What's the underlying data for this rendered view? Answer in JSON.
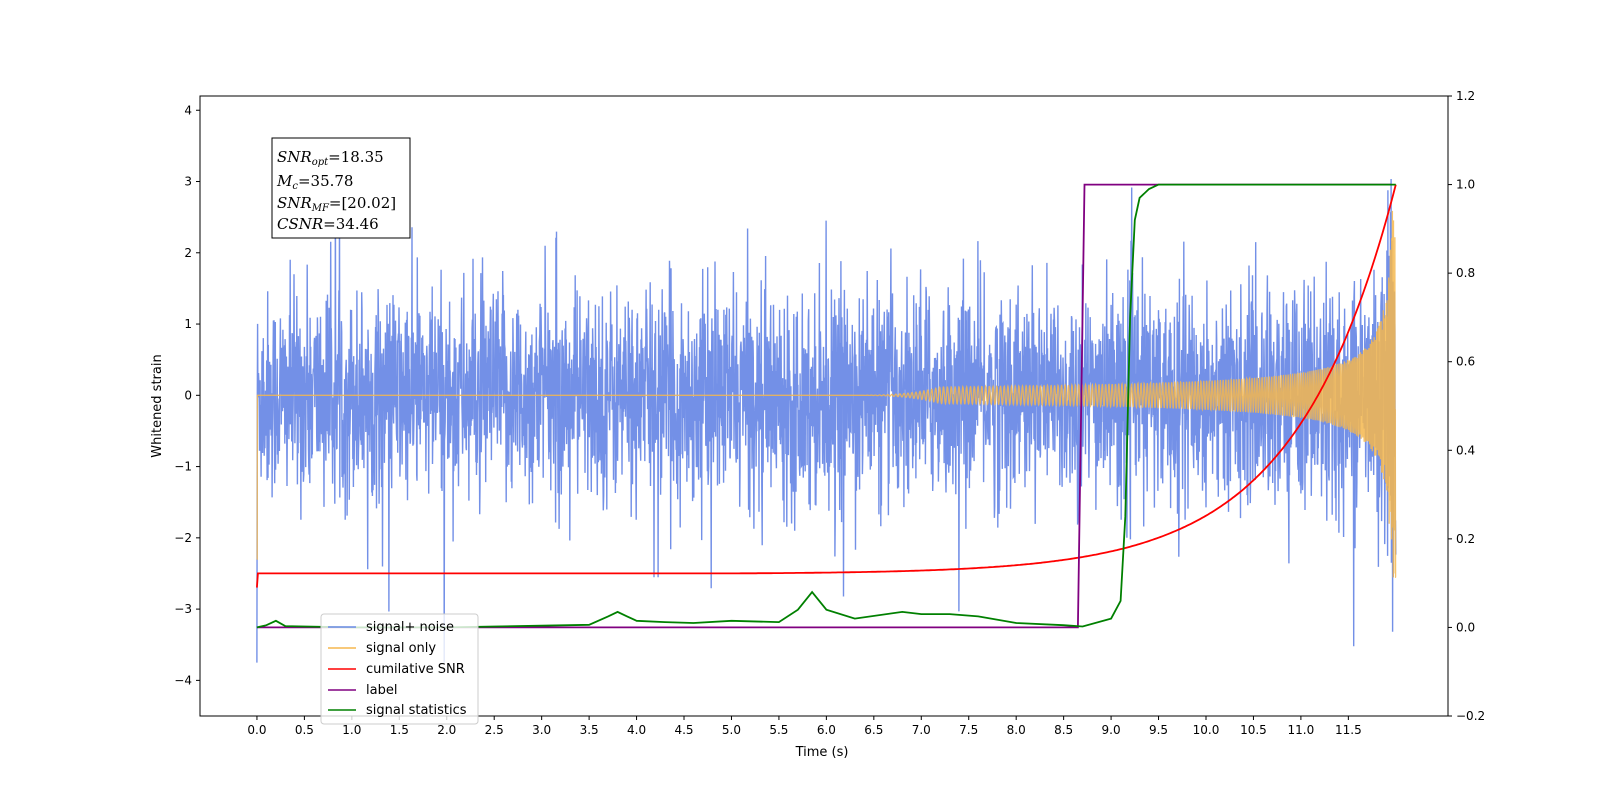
{
  "chart_data": {
    "type": "line",
    "xlabel": "Time (s)",
    "ylabel": "Whitened strain",
    "xlim": [
      -0.6,
      12.55
    ],
    "ylim_left": [
      -4.5,
      4.2
    ],
    "ylim_right": [
      -0.2,
      1.2
    ],
    "x_ticks": [
      "0.0",
      "0.5",
      "1.0",
      "1.5",
      "2.0",
      "2.5",
      "3.0",
      "3.5",
      "4.0",
      "4.5",
      "5.0",
      "5.5",
      "6.0",
      "6.5",
      "7.0",
      "7.5",
      "8.0",
      "8.5",
      "9.0",
      "9.5",
      "10.0",
      "10.5",
      "11.0",
      "11.5"
    ],
    "y_left_ticks": [
      "−4",
      "−3",
      "−2",
      "−1",
      "0",
      "1",
      "2",
      "3",
      "4"
    ],
    "y_right_ticks": [
      "−0.2",
      "0.0",
      "0.2",
      "0.4",
      "0.6",
      "0.8",
      "1.0",
      "1.2"
    ],
    "legend_position": "bottom-left",
    "legend": [
      "signal+ noise",
      "signal only",
      "cumilative SNR",
      "label",
      "signal statistics"
    ],
    "colors": {
      "signal_noise": "#6b8ae6",
      "signal_only": "#f5b74e",
      "cumulative_snr": "#ff0000",
      "label": "#800080",
      "signal_statistics": "#008000"
    },
    "annotation": {
      "snr_opt_value": "=18.35",
      "mc_value": "=35.78",
      "snr_mf_value": "=[20.02]",
      "csnr_value": "=34.46"
    },
    "series": [
      {
        "name": "cumilative SNR",
        "axis": "right",
        "x": [
          0.0,
          0.01,
          8.0,
          8.5,
          9.0,
          9.5,
          10.0,
          10.5,
          11.0,
          11.5,
          11.8,
          12.0
        ],
        "values": [
          0.09,
          0.122,
          0.124,
          0.14,
          0.18,
          0.222,
          0.27,
          0.33,
          0.41,
          0.56,
          0.73,
          1.0
        ]
      },
      {
        "name": "label",
        "axis": "right",
        "x": [
          0.0,
          8.65,
          8.72,
          11.95
        ],
        "values": [
          0.0,
          0.0,
          1.0,
          1.0
        ]
      },
      {
        "name": "signal statistics",
        "axis": "right",
        "x": [
          0.0,
          0.1,
          0.2,
          0.3,
          1.0,
          2.0,
          2.5,
          3.0,
          3.5,
          3.7,
          3.8,
          3.9,
          4.0,
          4.3,
          4.6,
          5.0,
          5.5,
          5.7,
          5.85,
          6.0,
          6.3,
          6.8,
          7.0,
          7.3,
          7.6,
          8.0,
          8.5,
          8.7,
          9.0,
          9.1,
          9.15,
          9.2,
          9.25,
          9.3,
          9.4,
          9.5,
          12.0
        ],
        "values": [
          0.0,
          0.005,
          0.015,
          0.003,
          0.0,
          0.0,
          0.002,
          0.004,
          0.006,
          0.025,
          0.035,
          0.025,
          0.015,
          0.012,
          0.01,
          0.015,
          0.012,
          0.04,
          0.08,
          0.04,
          0.02,
          0.035,
          0.03,
          0.03,
          0.025,
          0.01,
          0.005,
          0.002,
          0.02,
          0.06,
          0.25,
          0.7,
          0.92,
          0.97,
          0.99,
          1.0,
          1.0
        ]
      },
      {
        "name": "signal only",
        "axis": "left",
        "description": "chirp: flat at 0 until ~7.3 s, oscillation amplitude grows to ~2.5 near 12 s"
      },
      {
        "name": "signal+ noise",
        "axis": "left",
        "description": "dense noise, typical amplitude ~1.5, peaks to ~±3.7"
      }
    ]
  }
}
